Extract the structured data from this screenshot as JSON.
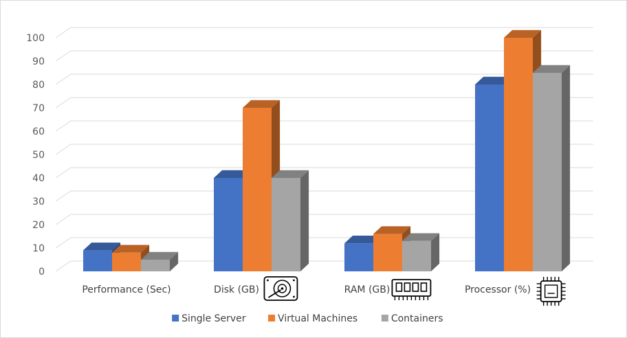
{
  "chart_data": {
    "type": "bar",
    "categories": [
      "Performance (Sec)",
      "Disk (GB)",
      "RAM (GB)",
      "Processor (%)"
    ],
    "category_icons": [
      "",
      "hard-disk-icon",
      "ram-module-icon",
      "processor-chip-icon"
    ],
    "series": [
      {
        "name": "Single Server",
        "values": [
          9,
          40,
          12,
          80
        ],
        "color": "#4472c4"
      },
      {
        "name": "Virtual Machines",
        "values": [
          8,
          70,
          16,
          100
        ],
        "color": "#ed7d31"
      },
      {
        "name": "Containers",
        "values": [
          5,
          40,
          13,
          85
        ],
        "color": "#a5a5a5"
      }
    ],
    "ylim": [
      0,
      100
    ],
    "yticks": [
      0,
      10,
      20,
      30,
      40,
      50,
      60,
      70,
      80,
      90,
      100
    ],
    "grid": true,
    "style": "3d-clustered-column",
    "legend": "bottom",
    "title": "",
    "xlabel": "",
    "ylabel": ""
  }
}
